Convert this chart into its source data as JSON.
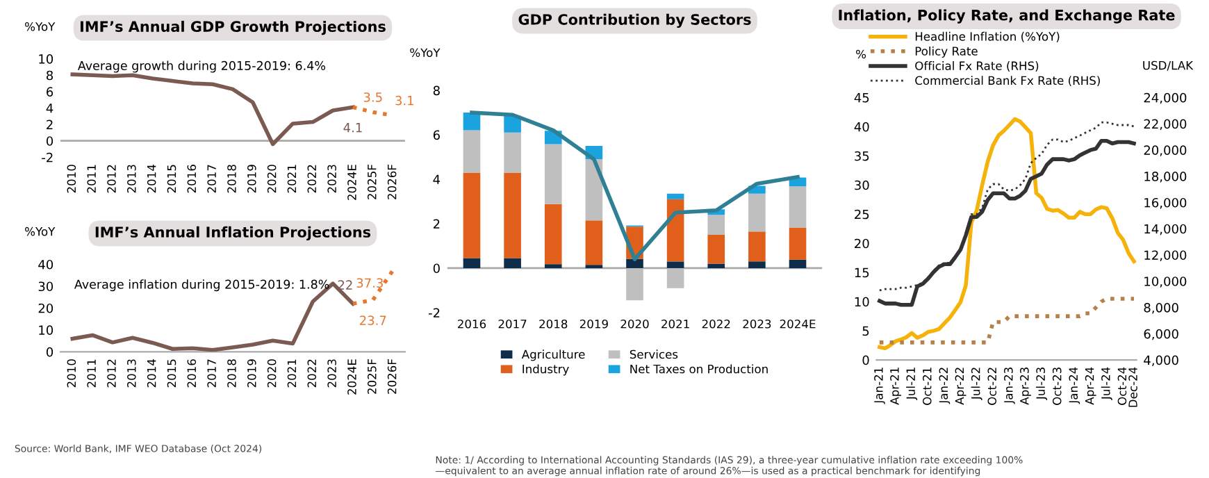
{
  "chart_data": [
    {
      "type": "line",
      "title": "IMF’s Annual GDP Growth Projections",
      "ylabel": "%YoY",
      "categories": [
        "2010",
        "2011",
        "2012",
        "2013",
        "2014",
        "2015",
        "2016",
        "2017",
        "2018",
        "2019",
        "2020",
        "2021",
        "2022",
        "2023",
        "2024E",
        "2025F",
        "2026F"
      ],
      "series": [
        {
          "color": "#7b5a51",
          "line_style": "solid",
          "values": [
            8.1,
            8.0,
            7.9,
            8.0,
            7.6,
            7.3,
            7.0,
            6.9,
            6.3,
            4.7,
            -0.4,
            2.1,
            2.3,
            3.7,
            4.1,
            null,
            null
          ],
          "value_labels": [
            null,
            null,
            null,
            null,
            null,
            null,
            null,
            null,
            null,
            null,
            null,
            null,
            null,
            null,
            "4.1",
            null,
            null
          ]
        },
        {
          "color": "#e8772e",
          "line_style": "dotted",
          "values": [
            null,
            null,
            null,
            null,
            null,
            null,
            null,
            null,
            null,
            null,
            null,
            null,
            null,
            null,
            4.1,
            3.5,
            3.1
          ],
          "value_labels": [
            null,
            null,
            null,
            null,
            null,
            null,
            null,
            null,
            null,
            null,
            null,
            null,
            null,
            null,
            null,
            "3.5",
            "3.1"
          ]
        }
      ],
      "ylim": [
        -2,
        10
      ],
      "yticks": [
        -2,
        0,
        2,
        4,
        6,
        8,
        10
      ],
      "annotations": [
        "Average growth during 2015-2019: 6.4%"
      ]
    },
    {
      "type": "line",
      "title": "IMF’s Annual Inflation Projections",
      "ylabel": "%YoY",
      "categories": [
        "2010",
        "2011",
        "2012",
        "2013",
        "2014",
        "2015",
        "2016",
        "2017",
        "2018",
        "2019",
        "2020",
        "2021",
        "2022",
        "2023",
        "2024E",
        "2025F",
        "2026F"
      ],
      "series": [
        {
          "color": "#7b5a51",
          "line_style": "solid",
          "values": [
            6.0,
            7.6,
            4.3,
            6.4,
            4.1,
            1.3,
            1.6,
            0.8,
            2.0,
            3.3,
            5.1,
            3.8,
            23.0,
            31.2,
            22,
            null,
            null
          ],
          "value_labels": [
            null,
            null,
            null,
            null,
            null,
            null,
            null,
            null,
            null,
            null,
            null,
            null,
            null,
            null,
            "22",
            null,
            null
          ]
        },
        {
          "color": "#e8772e",
          "line_style": "dotted",
          "values": [
            null,
            null,
            null,
            null,
            null,
            null,
            null,
            null,
            null,
            null,
            null,
            null,
            null,
            null,
            22,
            23.7,
            37.3
          ],
          "value_labels": [
            null,
            null,
            null,
            null,
            null,
            null,
            null,
            null,
            null,
            null,
            null,
            null,
            null,
            null,
            null,
            "23.7",
            "37.3"
          ]
        }
      ],
      "ylim": [
        0,
        40
      ],
      "yticks": [
        0,
        10,
        20,
        30,
        40
      ],
      "annotations": [
        "Average inflation during 2015-2019: 1.8%",
        "Source: World Bank, IMF WEO Database (Oct 2024)"
      ]
    },
    {
      "type": "bar",
      "stacked": true,
      "title": "GDP Contribution by Sectors",
      "ylabel": "%YoY",
      "legend": "bottom",
      "categories": [
        "2016",
        "2017",
        "2018",
        "2019",
        "2020",
        "2021",
        "2022",
        "2023",
        "2024E"
      ],
      "series": [
        {
          "name": "Agriculture",
          "color": "#0d2d4a",
          "values": [
            0.45,
            0.45,
            0.18,
            0.15,
            0.42,
            0.3,
            0.2,
            0.3,
            0.38
          ]
        },
        {
          "name": "Industry",
          "color": "#e0601b",
          "values": [
            3.85,
            3.85,
            2.7,
            2.0,
            1.45,
            2.8,
            1.3,
            1.35,
            1.45
          ]
        },
        {
          "name": "Services",
          "color": "#bfbfbf",
          "values": [
            1.9,
            1.8,
            2.7,
            2.75,
            -1.45,
            -0.9,
            0.9,
            1.7,
            1.85
          ]
        },
        {
          "name": "Net Taxes on Production",
          "color": "#1ba3e0",
          "values": [
            0.8,
            0.75,
            0.6,
            0.6,
            0.05,
            0.25,
            0.25,
            0.35,
            0.4
          ]
        },
        {
          "type": "line",
          "color": "#2f7f95",
          "values": [
            7.0,
            6.9,
            6.2,
            4.9,
            0.4,
            2.5,
            2.6,
            3.8,
            4.1
          ]
        }
      ],
      "ylim": [
        -2,
        8
      ],
      "yticks": [
        -2,
        0,
        2,
        4,
        6,
        8
      ],
      "annotations": [
        "Note: 1/ According to International Accounting Standards (IAS 29), a three-year cumulative inflation rate exceeding 100%\n—equivalent to an average annual inflation rate of around 26%—is used as a practical benchmark for identifying"
      ]
    },
    {
      "type": "line",
      "title": "Inflation, Policy Rate, and Exchange Rate",
      "ylabel": "%",
      "y2label": "USD/LAK",
      "legend": "top",
      "x": [
        "2021-01",
        "2021-02",
        "2021-03",
        "2021-04",
        "2021-05",
        "2021-06",
        "2021-07",
        "2021-08",
        "2021-09",
        "2021-10",
        "2021-11",
        "2021-12",
        "2022-01",
        "2022-02",
        "2022-03",
        "2022-04",
        "2022-05",
        "2022-06",
        "2022-07",
        "2022-08",
        "2022-09",
        "2022-10",
        "2022-11",
        "2022-12",
        "2023-01",
        "2023-02",
        "2023-03",
        "2023-04",
        "2023-05",
        "2023-06",
        "2023-07",
        "2023-08",
        "2023-09",
        "2023-10",
        "2023-11",
        "2023-12",
        "2024-01",
        "2024-02",
        "2024-03",
        "2024-04",
        "2024-05",
        "2024-06",
        "2024-07",
        "2024-08",
        "2024-09",
        "2024-10",
        "2024-11",
        "2024-12"
      ],
      "series": [
        {
          "name": "Headline Inflation (%YoY)",
          "color": "#f5b20a",
          "line_style": "solid",
          "values": [
            2.2,
            2.0,
            2.5,
            3.2,
            3.5,
            3.9,
            4.6,
            3.8,
            4.2,
            4.8,
            5.0,
            5.3,
            6.3,
            7.3,
            8.5,
            9.9,
            12.8,
            23.6,
            25.6,
            30.0,
            34.0,
            36.8,
            38.5,
            39.3,
            40.3,
            41.3,
            40.9,
            39.9,
            38.9,
            28.6,
            27.8,
            25.9,
            25.6,
            25.7,
            25.1,
            24.4,
            24.4,
            25.4,
            25.0,
            25.0,
            25.8,
            26.2,
            26.0,
            24.3,
            21.8,
            20.6,
            18.3,
            16.9
          ]
        },
        {
          "name": "Policy Rate",
          "color": "#b5804a",
          "line_style": "dotted",
          "values": [
            3.0,
            3.0,
            3.0,
            3.0,
            3.0,
            3.0,
            3.0,
            3.0,
            3.0,
            3.0,
            3.0,
            3.0,
            3.0,
            3.0,
            3.0,
            3.0,
            3.0,
            3.0,
            3.0,
            3.0,
            3.0,
            6.5,
            6.5,
            6.5,
            7.5,
            7.5,
            7.5,
            7.5,
            7.5,
            7.5,
            7.5,
            7.5,
            7.5,
            7.5,
            7.5,
            7.5,
            7.5,
            7.5,
            8.0,
            8.0,
            9.0,
            10.0,
            10.5,
            10.5,
            10.5,
            10.5,
            10.5,
            10.5
          ]
        },
        {
          "name": "Official Fx Rate (RHS)",
          "color": "#333333",
          "line_style": "solid",
          "axis": "y2",
          "values": [
            8500,
            8300,
            8300,
            8300,
            8200,
            8200,
            8200,
            9600,
            9800,
            10200,
            10700,
            11100,
            11300,
            11300,
            11800,
            12400,
            13500,
            14900,
            14900,
            15300,
            16200,
            16700,
            16700,
            16700,
            16300,
            16300,
            16500,
            16900,
            17800,
            18000,
            18200,
            18900,
            19300,
            19300,
            19300,
            19200,
            19300,
            19600,
            19800,
            20000,
            20100,
            20700,
            20700,
            20500,
            20600,
            20600,
            20600,
            20500
          ]
        },
        {
          "name": "Commercial Bank Fx Rate (RHS)",
          "color": "#333333",
          "line_style": "dotted",
          "axis": "y2",
          "values": [
            9300,
            9400,
            9400,
            9400,
            9500,
            9500,
            9600,
            9700,
            9900,
            10300,
            10800,
            11200,
            11400,
            11400,
            11800,
            12500,
            13700,
            15100,
            15100,
            15600,
            17000,
            17400,
            17400,
            17000,
            16900,
            17000,
            17300,
            17800,
            19000,
            19400,
            19700,
            20400,
            20800,
            20800,
            20600,
            20700,
            20900,
            21100,
            21300,
            21500,
            21700,
            22100,
            22100,
            22000,
            21900,
            21900,
            21900,
            21800
          ]
        }
      ],
      "xlim": [
        "2020-12-15",
        "2024-12-15"
      ],
      "xticks": [
        {
          "value": "2021-01",
          "label": "Jan-21"
        },
        {
          "value": "2021-04",
          "label": "Apr-21"
        },
        {
          "value": "2021-07",
          "label": "Jul-21"
        },
        {
          "value": "2021-10",
          "label": "Oct-21"
        },
        {
          "value": "2022-01",
          "label": "Jan-22"
        },
        {
          "value": "2022-04",
          "label": "Apr-22"
        },
        {
          "value": "2022-07",
          "label": "Jul-22"
        },
        {
          "value": "2022-10",
          "label": "Oct-22"
        },
        {
          "value": "2023-01",
          "label": "Jan-23"
        },
        {
          "value": "2023-04",
          "label": "Apr-23"
        },
        {
          "value": "2023-07",
          "label": "Jul-23"
        },
        {
          "value": "2023-10",
          "label": "Oct-23"
        },
        {
          "value": "2024-01",
          "label": "Jan-24"
        },
        {
          "value": "2024-04",
          "label": "Apr-24"
        },
        {
          "value": "2024-07",
          "label": "Jul-24"
        },
        {
          "value": "2024-10",
          "label": "Oct-24"
        },
        {
          "value": "2024-12",
          "label": "Dec-24"
        }
      ],
      "ylim": [
        0,
        45
      ],
      "yticks": [
        0,
        5,
        10,
        15,
        20,
        25,
        30,
        35,
        40,
        45
      ],
      "y2lim": [
        4000,
        24000
      ],
      "y2ticks": [
        {
          "value": 4000,
          "label": "4,000"
        },
        {
          "value": 6000,
          "label": "6,000"
        },
        {
          "value": 8000,
          "label": "8,000"
        },
        {
          "value": 10000,
          "label": "10,000"
        },
        {
          "value": 12000,
          "label": "12,000"
        },
        {
          "value": 14000,
          "label": "14,000"
        },
        {
          "value": 16000,
          "label": "16,000"
        },
        {
          "value": 18000,
          "label": "18,000"
        },
        {
          "value": 20000,
          "label": "20,000"
        },
        {
          "value": 22000,
          "label": "22,000"
        },
        {
          "value": 24000,
          "label": "24,000"
        }
      ]
    }
  ]
}
